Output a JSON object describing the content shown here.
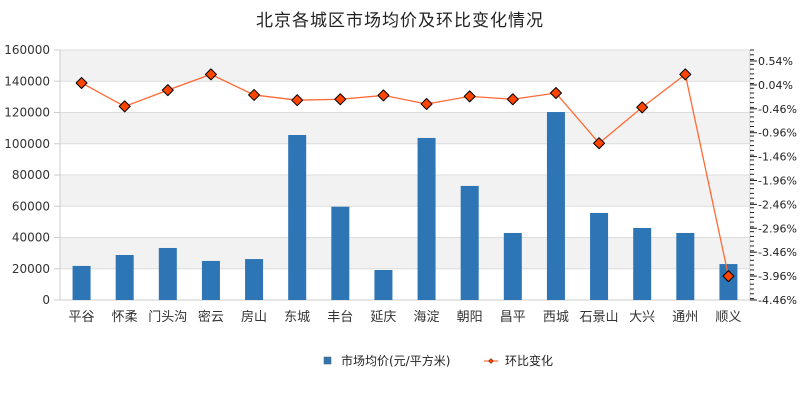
{
  "title": "北京各城区市场均价及环比变化情况",
  "colors": {
    "bar": "#2E75B6",
    "line": "#FF6A33",
    "marker": "#FF4500",
    "marker_stroke": "#000000",
    "band": "#F2F2F2",
    "grid": "#DDDDDD"
  },
  "legend": {
    "items": [
      {
        "label": "市场均价(元/平方米)",
        "type": "bar"
      },
      {
        "label": "环比变化",
        "type": "line"
      }
    ]
  },
  "chart_data": {
    "type": "bar+line",
    "title": "北京各城区市场均价及环比变化情况",
    "categories": [
      "平谷",
      "怀柔",
      "门头沟",
      "密云",
      "房山",
      "东城",
      "丰台",
      "延庆",
      "海淀",
      "朝阳",
      "昌平",
      "西城",
      "石景山",
      "大兴",
      "通州",
      "顺义"
    ],
    "series": [
      {
        "name": "市场均价(元/平方米)",
        "type": "bar",
        "axis": "left",
        "values": [
          21800,
          28800,
          33300,
          25000,
          26200,
          105600,
          59700,
          19200,
          103700,
          73000,
          42900,
          120300,
          55700,
          46100,
          42900,
          23000
        ]
      },
      {
        "name": "环比变化",
        "type": "line",
        "axis": "right",
        "unit": "%",
        "values": [
          0.08,
          -0.41,
          -0.07,
          0.26,
          -0.17,
          -0.28,
          -0.26,
          -0.18,
          -0.36,
          -0.2,
          -0.26,
          -0.13,
          -1.18,
          -0.43,
          0.26,
          -3.96
        ]
      }
    ],
    "left_axis": {
      "ticks": [
        "0",
        "20000",
        "40000",
        "60000",
        "80000",
        "100000",
        "120000",
        "140000",
        "160000"
      ],
      "ylim": [
        0,
        160000
      ]
    },
    "right_axis": {
      "ticks": [
        "0.54%",
        "0.04%",
        "-0.46%",
        "-0.96%",
        "-1.46%",
        "-1.96%",
        "-2.46%",
        "-2.96%",
        "-3.46%",
        "-3.96%",
        "-4.46%"
      ],
      "ylim": [
        -4.46,
        0.77
      ]
    },
    "xlabel": "",
    "ylabel": "",
    "grid": true,
    "legend_position": "bottom"
  }
}
